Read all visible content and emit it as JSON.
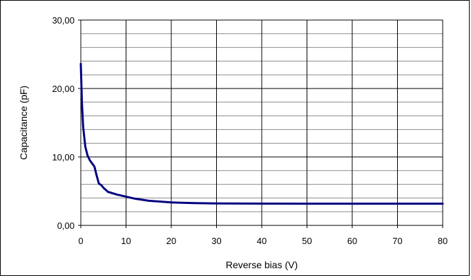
{
  "chart_data": {
    "type": "line",
    "title": "",
    "xlabel": "Reverse bias (V)",
    "ylabel": "Capacitance (pF)",
    "xlim": [
      0,
      80
    ],
    "ylim": [
      0,
      30
    ],
    "x_ticks": [
      "0",
      "10",
      "20",
      "30",
      "40",
      "50",
      "60",
      "70",
      "80"
    ],
    "y_ticks": [
      "0,00",
      "10,00",
      "20,00",
      "30,00"
    ],
    "major_x_step": 10,
    "minor_y_step": 2,
    "major_y_step": 10,
    "grid": true,
    "line_color": "#000080",
    "series": [
      {
        "x": [
          0,
          0.25,
          0.5,
          1,
          1.5,
          2,
          3,
          3.5,
          4,
          4.5,
          5,
          6,
          8,
          10,
          12,
          15,
          20,
          25,
          30,
          40,
          50,
          60,
          70,
          80
        ],
        "y": [
          23.6,
          18.0,
          14.5,
          11.5,
          10.2,
          9.5,
          8.6,
          7.3,
          6.1,
          5.9,
          5.5,
          4.9,
          4.5,
          4.2,
          3.9,
          3.6,
          3.35,
          3.25,
          3.2,
          3.18,
          3.17,
          3.17,
          3.17,
          3.17
        ]
      }
    ]
  }
}
